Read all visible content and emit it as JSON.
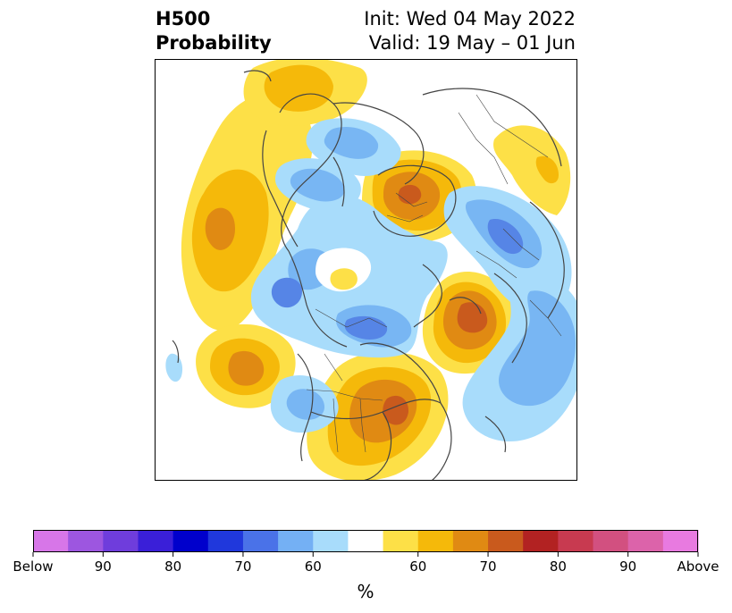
{
  "header": {
    "title_line1": "H500",
    "title_line2": "Probability",
    "init": "Init: Wed 04 May 2022",
    "valid": "Valid: 19 May – 01 Jun"
  },
  "map": {
    "projection": "north-polar-stereographic",
    "colors": {
      "below_60": "#a8dcfb",
      "below_70": "#78b6f3",
      "below_75": "#5685e6",
      "above_60": "#fde047",
      "above_65": "#f5b90a",
      "above_70": "#e08a13",
      "above_75": "#c95a1d",
      "coastline": "#444444"
    }
  },
  "colorbar": {
    "unit_label": "%",
    "tick_labels": [
      "Below",
      "90",
      "80",
      "70",
      "60",
      "60",
      "70",
      "80",
      "90",
      "Above"
    ],
    "colors": [
      "#d776e8",
      "#9d56e0",
      "#6f3ddc",
      "#3a1fd8",
      "#0000cc",
      "#2038dc",
      "#4a72e8",
      "#74b0f4",
      "#a8dcfb",
      "#ffffff",
      "#fde047",
      "#f5b90a",
      "#e08a13",
      "#c95a1d",
      "#b22222",
      "#c83a50",
      "#d25080",
      "#dc63aa",
      "#e87ae0"
    ]
  }
}
